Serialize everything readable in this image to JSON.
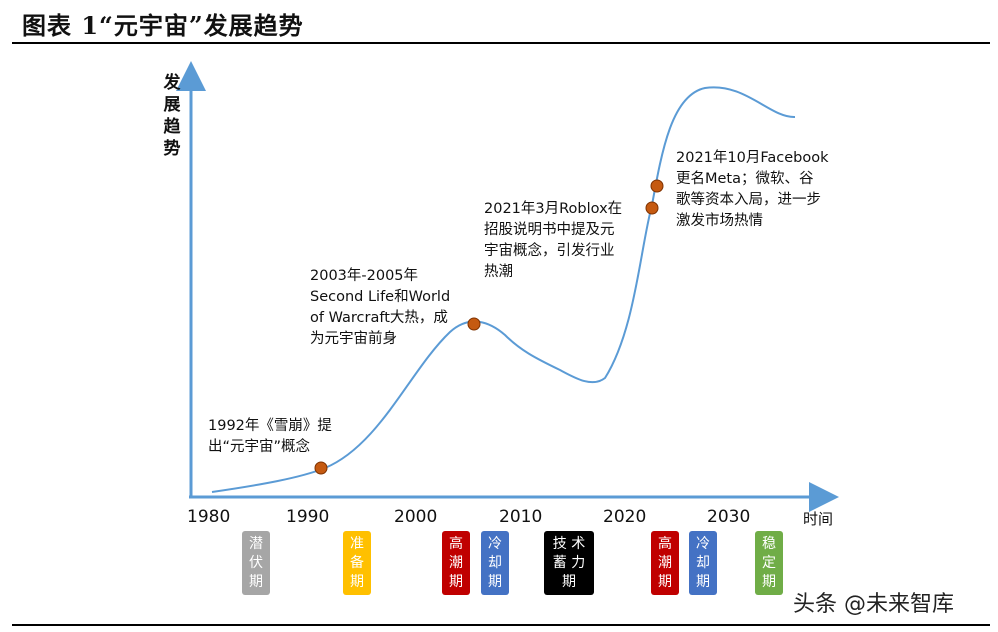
{
  "title": "图表 1“元宇宙”发展趋势",
  "y_axis_label": "发展趋势",
  "x_axis_unit": "时间",
  "x_ticks": [
    "1980",
    "1990",
    "2000",
    "2010",
    "2020",
    "2030"
  ],
  "annotations": {
    "a1992": "1992年《雪崩》提\n出“元宇宙”概念",
    "a2003": "2003年-2005年\nSecond Life和World\nof Warcraft大热，成\n为元宇宙前身",
    "a2021_3": "2021年3月Roblox在\n招股说明书中提及元\n宇宙概念，引发行业\n热潮",
    "a2021_10": "2021年10月Facebook\n更名Meta；微软、谷\n歌等资本入局，进一步\n激发市场热情"
  },
  "phases": [
    {
      "label": "潜\n伏\n期",
      "color": "#a6a6a6"
    },
    {
      "label": "准\n备\n期",
      "color": "#ffc000"
    },
    {
      "label": "高\n潮\n期",
      "color": "#c00000"
    },
    {
      "label": "冷\n却\n期",
      "color": "#4472c4"
    },
    {
      "label": "技 术\n蓄 力\n期",
      "color": "#000000"
    },
    {
      "label": "高\n潮\n期",
      "color": "#c00000"
    },
    {
      "label": "冷\n却\n期",
      "color": "#4472c4"
    },
    {
      "label": "稳\n定\n期",
      "color": "#70ad47"
    }
  ],
  "colors": {
    "axis": "#5b9bd5",
    "curve": "#5b9bd5",
    "marker_fill": "#c55a11",
    "marker_stroke": "#7f3200"
  },
  "watermark": "头条 @未来智库"
}
